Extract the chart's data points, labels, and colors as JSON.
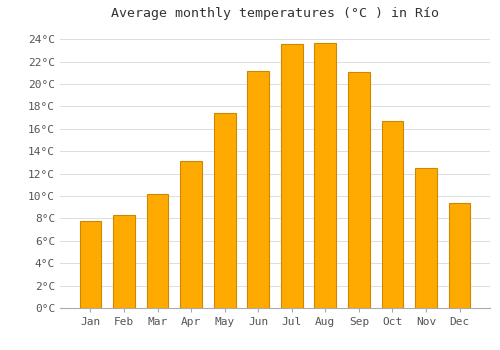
{
  "title": "Average monthly temperatures (°C ) in Río",
  "months": [
    "Jan",
    "Feb",
    "Mar",
    "Apr",
    "May",
    "Jun",
    "Jul",
    "Aug",
    "Sep",
    "Oct",
    "Nov",
    "Dec"
  ],
  "values": [
    7.8,
    8.3,
    10.2,
    13.1,
    17.4,
    21.2,
    23.6,
    23.7,
    21.1,
    16.7,
    12.5,
    9.4
  ],
  "bar_color": "#FFAA00",
  "bar_edge_color": "#CC8800",
  "ylim": [
    0,
    25
  ],
  "yticks": [
    0,
    2,
    4,
    6,
    8,
    10,
    12,
    14,
    16,
    18,
    20,
    22,
    24
  ],
  "background_color": "#FFFFFF",
  "grid_color": "#DDDDDD",
  "title_fontsize": 9.5,
  "tick_fontsize": 8,
  "font_family": "monospace"
}
